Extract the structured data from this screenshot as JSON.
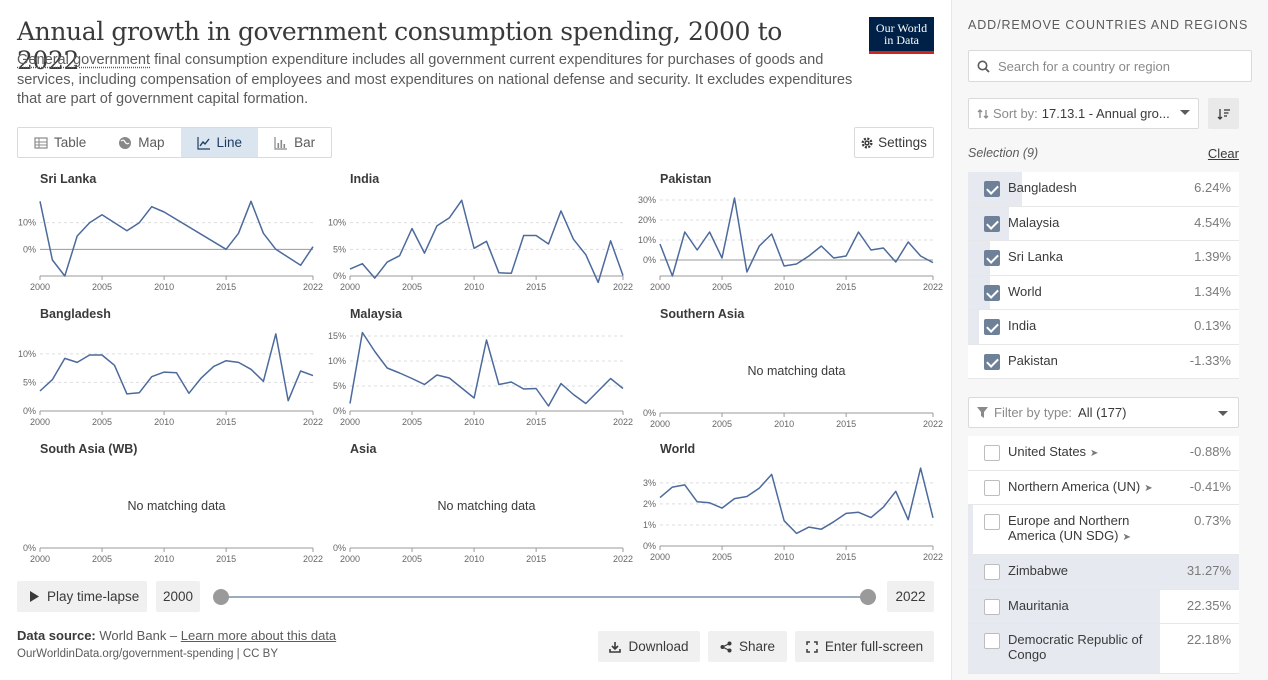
{
  "header": {
    "title": "Annual growth in government consumption spending, 2000 to 2022",
    "subtitle_link": "General government",
    "subtitle_rest": " final consumption expenditure includes all government current expenditures for purchases of goods and services, including compensation of employees and most expenditures on national defense and security. It excludes expenditures that are part of government capital formation.",
    "logo_line1": "Our World",
    "logo_line2": "in Data"
  },
  "tabs": [
    {
      "label": "Table",
      "icon": "table-icon",
      "active": false
    },
    {
      "label": "Map",
      "icon": "globe-icon",
      "active": false
    },
    {
      "label": "Line",
      "icon": "line-chart-icon",
      "active": true
    },
    {
      "label": "Bar",
      "icon": "bar-chart-icon",
      "active": false
    }
  ],
  "settings_label": "Settings",
  "no_data_text": "No matching data",
  "colors": {
    "line": "#4c6a9c",
    "zero": "#9a9a9a",
    "grid": "#dddddd"
  },
  "chart_data": [
    {
      "type": "line",
      "title": "Sri Lanka",
      "x": [
        2000,
        2001,
        2002,
        2003,
        2004,
        2005,
        2006,
        2007,
        2008,
        2009,
        2010,
        2015,
        2016,
        2017,
        2018,
        2019,
        2020,
        2021,
        2022
      ],
      "y": [
        18,
        -4,
        -10,
        5,
        10,
        13,
        10,
        7,
        10,
        16,
        14,
        0,
        6,
        18,
        6,
        0,
        -3,
        -6,
        1
      ],
      "yticks": [
        0,
        10
      ],
      "ylim": [
        -10,
        20
      ],
      "xticks": [
        2000,
        2005,
        2010,
        2015,
        2022
      ]
    },
    {
      "type": "line",
      "title": "India",
      "x": [
        2000,
        2001,
        2002,
        2003,
        2004,
        2005,
        2006,
        2007,
        2008,
        2009,
        2010,
        2011,
        2012,
        2013,
        2014,
        2015,
        2016,
        2017,
        2018,
        2019,
        2020,
        2021,
        2022
      ],
      "y": [
        1.3,
        2.3,
        -0.4,
        2.6,
        3.8,
        8.9,
        4.3,
        9.4,
        10.9,
        14.2,
        5.2,
        6.5,
        0.6,
        0.5,
        7.6,
        7.6,
        6,
        12.2,
        6.9,
        4,
        -1.2,
        6.6,
        0.1
      ],
      "yticks": [
        0,
        5,
        10
      ],
      "ylim": [
        0,
        15
      ],
      "xticks": [
        2000,
        2005,
        2010,
        2015,
        2022
      ]
    },
    {
      "type": "line",
      "title": "Pakistan",
      "x": [
        2000,
        2001,
        2002,
        2003,
        2004,
        2005,
        2006,
        2007,
        2008,
        2009,
        2010,
        2011,
        2012,
        2013,
        2014,
        2015,
        2016,
        2017,
        2018,
        2019,
        2020,
        2021,
        2022
      ],
      "y": [
        8,
        -8,
        14,
        5,
        14,
        1,
        31,
        -6,
        7,
        13,
        -3,
        -2,
        2,
        7,
        1,
        2,
        14,
        5,
        6,
        -1,
        9,
        2,
        -1.3
      ],
      "yticks": [
        0,
        10,
        20,
        30
      ],
      "ylim": [
        -8,
        32
      ],
      "xticks": [
        2000,
        2005,
        2010,
        2015,
        2022
      ]
    },
    {
      "type": "line",
      "title": "Bangladesh",
      "x": [
        2000,
        2001,
        2002,
        2003,
        2004,
        2005,
        2006,
        2007,
        2008,
        2009,
        2010,
        2011,
        2012,
        2013,
        2014,
        2015,
        2016,
        2017,
        2018,
        2019,
        2020,
        2021,
        2022
      ],
      "y": [
        3.5,
        5.5,
        9.2,
        8.5,
        9.8,
        9.8,
        8,
        3,
        3.2,
        6,
        6.8,
        6.7,
        3.1,
        5.8,
        7.8,
        8.8,
        8.5,
        7.3,
        5.2,
        13.5,
        1.8,
        7,
        6.2
      ],
      "yticks": [
        0,
        5,
        10
      ],
      "ylim": [
        0,
        14
      ],
      "xticks": [
        2000,
        2005,
        2010,
        2015,
        2022
      ]
    },
    {
      "type": "line",
      "title": "Malaysia",
      "x": [
        2000,
        2001,
        2002,
        2003,
        2004,
        2005,
        2006,
        2007,
        2008,
        2009,
        2010,
        2011,
        2012,
        2013,
        2014,
        2015,
        2016,
        2017,
        2018,
        2019,
        2020,
        2021,
        2022
      ],
      "y": [
        1.5,
        15.7,
        11.9,
        8.6,
        7.6,
        6.5,
        5.3,
        7.2,
        6.6,
        4.6,
        2.6,
        14.2,
        5.3,
        5.8,
        4.4,
        4.5,
        1,
        5.5,
        3.3,
        1.5,
        4,
        6.5,
        4.5
      ],
      "yticks": [
        0,
        5,
        10,
        15
      ],
      "ylim": [
        0,
        16
      ],
      "xticks": [
        2000,
        2005,
        2010,
        2015,
        2022
      ]
    },
    {
      "type": "line",
      "title": "Southern Asia",
      "nodata": true,
      "yticks": [
        0
      ],
      "xticks": [
        2000,
        2005,
        2010,
        2015,
        2022
      ]
    },
    {
      "type": "line",
      "title": "South Asia (WB)",
      "nodata": true,
      "yticks": [
        0
      ],
      "xticks": [
        2000,
        2005,
        2010,
        2015,
        2022
      ]
    },
    {
      "type": "line",
      "title": "Asia",
      "nodata": true,
      "yticks": [
        0
      ],
      "xticks": [
        2000,
        2005,
        2010,
        2015,
        2022
      ]
    },
    {
      "type": "line",
      "title": "World",
      "x": [
        2000,
        2001,
        2002,
        2003,
        2004,
        2005,
        2006,
        2007,
        2008,
        2009,
        2010,
        2011,
        2012,
        2013,
        2014,
        2015,
        2016,
        2017,
        2018,
        2019,
        2020,
        2021,
        2022
      ],
      "y": [
        2.3,
        2.8,
        2.9,
        2.1,
        2.05,
        1.8,
        2.25,
        2.35,
        2.75,
        3.4,
        1.2,
        0.6,
        0.9,
        0.8,
        1.15,
        1.55,
        1.6,
        1.35,
        1.85,
        2.6,
        1.25,
        3.7,
        1.34
      ],
      "yticks": [
        0,
        1,
        2,
        3
      ],
      "ylim": [
        0,
        3.8
      ],
      "xticks": [
        2000,
        2005,
        2010,
        2015,
        2022
      ]
    }
  ],
  "timeline": {
    "play_label": "Play time-lapse",
    "start_year": "2000",
    "end_year": "2022"
  },
  "footer": {
    "source_label": "Data source:",
    "source_text": " World Bank – ",
    "learn_more": "Learn more about this data",
    "url": "OurWorldinData.org/government-spending | CC BY",
    "download": "Download",
    "share": "Share",
    "fullscreen": "Enter full-screen"
  },
  "sidebar": {
    "heading": "ADD/REMOVE COUNTRIES AND REGIONS",
    "search_placeholder": "Search for a country or region",
    "sort_label": "Sort by:",
    "sort_value": "17.13.1 - Annual gro...",
    "selection_label": "Selection (9)",
    "clear_label": "Clear",
    "selected": [
      {
        "name": "Bangladesh",
        "value": "6.24%",
        "fill": 0.2
      },
      {
        "name": "Malaysia",
        "value": "4.54%",
        "fill": 0.15
      },
      {
        "name": "Sri Lanka",
        "value": "1.39%",
        "fill": 0.08
      },
      {
        "name": "World",
        "value": "1.34%",
        "fill": 0.08
      },
      {
        "name": "India",
        "value": "0.13%",
        "fill": 0.04
      },
      {
        "name": "Pakistan",
        "value": "-1.33%",
        "fill": 0.0
      }
    ],
    "filter_label": "Filter by type:",
    "filter_value": "All (177)",
    "others": [
      {
        "name": "United States",
        "value": "-0.88%",
        "fill": 0.0,
        "tri": true
      },
      {
        "name": "Northern America (UN)",
        "value": "-0.41%",
        "fill": 0.0,
        "tri": true
      },
      {
        "name": "Europe and Northern America (UN SDG)",
        "value": "0.73%",
        "fill": 0.02,
        "tri": true,
        "tall": true
      },
      {
        "name": "Zimbabwe",
        "value": "31.27%",
        "fill": 1.0
      },
      {
        "name": "Mauritania",
        "value": "22.35%",
        "fill": 0.71
      },
      {
        "name": "Democratic Republic of Congo",
        "value": "22.18%",
        "fill": 0.71,
        "tall": true
      }
    ]
  }
}
